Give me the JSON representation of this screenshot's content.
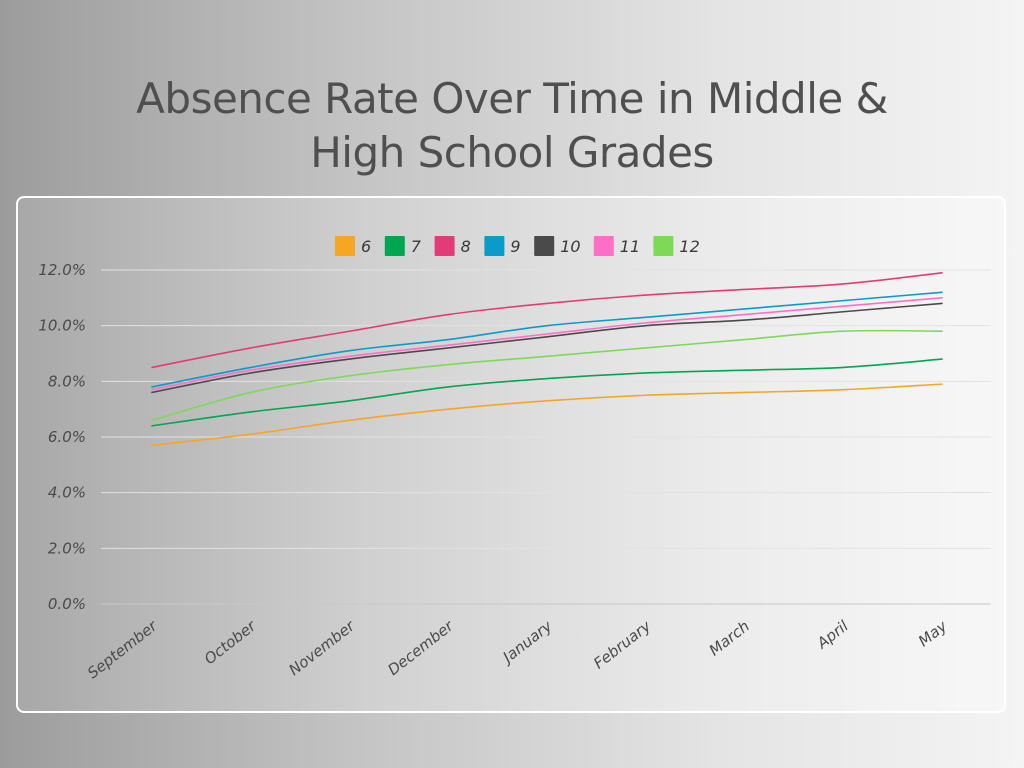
{
  "chart_data": {
    "type": "line",
    "title": [
      "Absence Rate Over Time in Middle &",
      "High School Grades"
    ],
    "xlabel": "",
    "ylabel": "",
    "categories": [
      "September",
      "October",
      "November",
      "December",
      "January",
      "February",
      "March",
      "April",
      "May"
    ],
    "ylim": [
      0,
      12
    ],
    "yticks": [
      0,
      2,
      4,
      6,
      8,
      10,
      12
    ],
    "ytick_labels": [
      "0.0%",
      "2.0%",
      "4.0%",
      "6.0%",
      "8.0%",
      "10.0%",
      "12.0%"
    ],
    "grid": true,
    "legend_position": "top-center",
    "series": [
      {
        "name": "6",
        "color": "#f5a623",
        "values": [
          5.7,
          6.1,
          6.6,
          7.0,
          7.3,
          7.5,
          7.6,
          7.7,
          7.9
        ]
      },
      {
        "name": "7",
        "color": "#00a650",
        "values": [
          6.4,
          6.9,
          7.3,
          7.8,
          8.1,
          8.3,
          8.4,
          8.5,
          8.8
        ]
      },
      {
        "name": "8",
        "color": "#e23b77",
        "values": [
          8.5,
          9.2,
          9.8,
          10.4,
          10.8,
          11.1,
          11.3,
          11.5,
          11.9
        ]
      },
      {
        "name": "9",
        "color": "#0a9bc9",
        "values": [
          7.8,
          8.5,
          9.1,
          9.5,
          10.0,
          10.3,
          10.6,
          10.9,
          11.2
        ]
      },
      {
        "name": "10",
        "color": "#4a4a4a",
        "values": [
          7.6,
          8.3,
          8.8,
          9.2,
          9.6,
          10.0,
          10.2,
          10.5,
          10.8
        ]
      },
      {
        "name": "11",
        "color": "#ff6fc8",
        "values": [
          7.7,
          8.4,
          8.9,
          9.3,
          9.7,
          10.1,
          10.4,
          10.7,
          11.0
        ]
      },
      {
        "name": "12",
        "color": "#7ed957",
        "values": [
          6.6,
          7.6,
          8.2,
          8.6,
          8.9,
          9.2,
          9.5,
          9.8,
          9.8
        ]
      }
    ]
  }
}
